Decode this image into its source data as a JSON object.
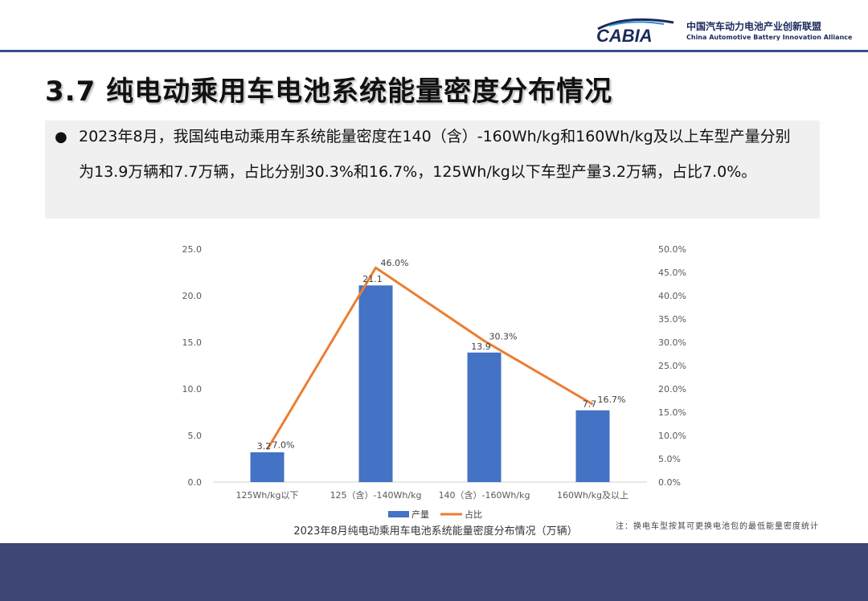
{
  "header": {
    "logo_text": "CABIA",
    "org_name_cn": "中国汽车动力电池产业创新联盟",
    "org_name_en": "China Automotive Battery Innovation Alliance"
  },
  "slide": {
    "title": "3.7 纯电动乘用车电池系统能量密度分布情况",
    "bullet": "2023年8月，我国纯电动乘用车系统能量密度在140（含）-160Wh/kg和160Wh/kg及以上车型产量分别为13.9万辆和7.7万辆，占比分别30.3%和16.7%，125Wh/kg以下车型产量3.2万辆，占比7.0%。",
    "footnote": "注：换电车型按其可更换电池包的最低能量密度统计"
  },
  "chart_data": {
    "type": "bar",
    "title": "2023年8月纯电动乘用车电池系统能量密度分布情况（万辆）",
    "categories": [
      "125Wh/kg以下",
      "125（含）-140Wh/kg",
      "140（含）-160Wh/kg",
      "160Wh/kg及以上"
    ],
    "series": [
      {
        "name": "产量",
        "type": "bar",
        "axis": "left",
        "values": [
          3.2,
          21.1,
          13.9,
          7.7
        ],
        "labels": [
          "3.2",
          "21.1",
          "13.9",
          "7.7"
        ],
        "color": "#4472c4"
      },
      {
        "name": "占比",
        "type": "line",
        "axis": "right",
        "values": [
          7.0,
          46.0,
          30.3,
          16.7
        ],
        "labels": [
          "7.0%",
          "46.0%",
          "30.3%",
          "16.7%"
        ],
        "color": "#ed7d31"
      }
    ],
    "y_left": {
      "min": 0,
      "max": 25,
      "step": 5,
      "ticks": [
        "0.0",
        "5.0",
        "10.0",
        "15.0",
        "20.0",
        "25.0"
      ]
    },
    "y_right": {
      "min": 0,
      "max": 50,
      "step": 5,
      "ticks": [
        "0.0%",
        "5.0%",
        "10.0%",
        "15.0%",
        "20.0%",
        "25.0%",
        "30.0%",
        "35.0%",
        "40.0%",
        "45.0%",
        "50.0%"
      ]
    },
    "grid": false,
    "legend": "bottom"
  },
  "colors": {
    "bar": "#4472c4",
    "line": "#ed7d31",
    "footer_band": "#3d4675",
    "header_line": "#3a4f8a"
  }
}
